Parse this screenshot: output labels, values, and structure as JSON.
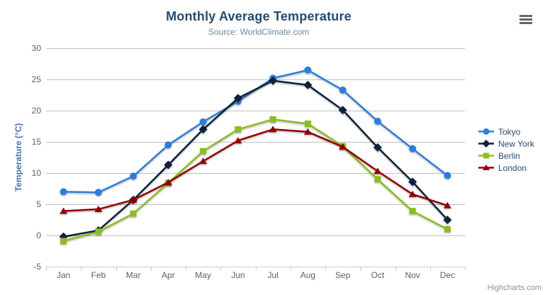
{
  "chart_data": {
    "type": "line",
    "title": "Monthly Average Temperature",
    "subtitle": "Source: WorldClimate.com",
    "categories": [
      "Jan",
      "Feb",
      "Mar",
      "Apr",
      "May",
      "Jun",
      "Jul",
      "Aug",
      "Sep",
      "Oct",
      "Nov",
      "Dec"
    ],
    "xlabel": "",
    "ylabel": "Temperature (°C)",
    "ylim": [
      -5,
      30
    ],
    "ytick_interval": 5,
    "grid": true,
    "legend_position": "right",
    "series": [
      {
        "name": "Tokyo",
        "marker": "circle",
        "color": "#2f7ed8",
        "values": [
          7.0,
          6.9,
          9.5,
          14.5,
          18.2,
          21.5,
          25.2,
          26.5,
          23.3,
          18.3,
          13.9,
          9.6
        ]
      },
      {
        "name": "New York",
        "marker": "diamond",
        "color": "#0d233a",
        "values": [
          -0.2,
          0.8,
          5.7,
          11.3,
          17.0,
          22.0,
          24.8,
          24.1,
          20.1,
          14.1,
          8.6,
          2.5
        ]
      },
      {
        "name": "Berlin",
        "marker": "square",
        "color": "#8bbc21",
        "values": [
          -0.9,
          0.6,
          3.5,
          8.4,
          13.5,
          17.0,
          18.6,
          17.9,
          14.3,
          9.0,
          3.9,
          1.0
        ]
      },
      {
        "name": "London",
        "marker": "triangle",
        "color": "#910000",
        "values": [
          3.9,
          4.2,
          5.7,
          8.5,
          11.9,
          15.2,
          17.0,
          16.6,
          14.2,
          10.3,
          6.6,
          4.8
        ]
      }
    ]
  },
  "credits": {
    "text": "Highcharts.com"
  },
  "icons": {
    "context_menu": "hamburger-icon"
  },
  "colors": {
    "title": "#274b6d",
    "subtitle": "#6d869f",
    "axis_label": "#606060",
    "axis_title": "#4572a7",
    "grid": "#c0c0c0",
    "axis_line": "#c0d0e0",
    "legend_text": "#274b6d",
    "credit": "#909090",
    "burger": "#666666",
    "background": "#ffffff"
  }
}
